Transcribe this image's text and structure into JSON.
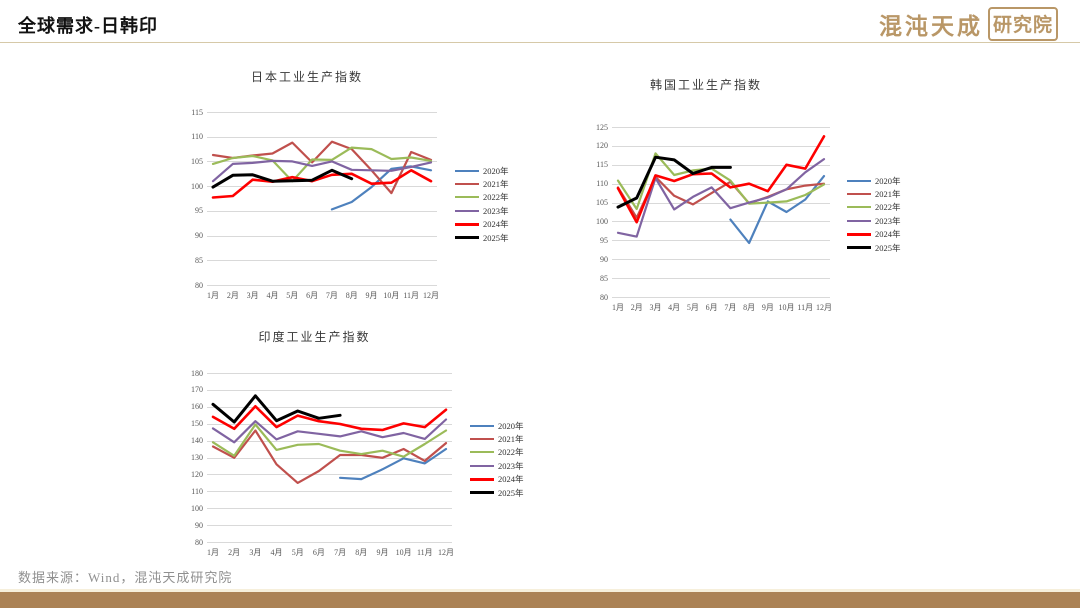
{
  "page": {
    "title": "全球需求-日韩印",
    "logo": {
      "brand": "混沌天成",
      "seal": "研究院"
    },
    "source": "数据来源：Wind，混沌天成研究院",
    "colors": {
      "accent_tan": "#AB8255",
      "logo_gold": "#B99767",
      "gridline": "#D9D9D9"
    }
  },
  "chart_data": [
    {
      "type": "line",
      "title": "日本工业生产指数",
      "x": [
        "1月",
        "2月",
        "3月",
        "4月",
        "5月",
        "6月",
        "7月",
        "8月",
        "9月",
        "10月",
        "11月",
        "12月"
      ],
      "ylim": [
        80,
        115
      ],
      "ystep": 5,
      "grid": true,
      "legend_position": "right",
      "series": [
        {
          "name": "2020年",
          "color": "#4E81BD",
          "values": [
            null,
            null,
            null,
            null,
            null,
            null,
            95.3,
            96.8,
            99.8,
            103.5,
            104,
            103.2
          ]
        },
        {
          "name": "2021年",
          "color": "#C0504D",
          "values": [
            106.3,
            105.7,
            106.2,
            106.6,
            108.8,
            104.8,
            109,
            107.5,
            103.2,
            98.6,
            106.9,
            105.3
          ]
        },
        {
          "name": "2022年",
          "color": "#9BBB59",
          "values": [
            104.5,
            105.7,
            106.1,
            105.2,
            101,
            105.4,
            105.3,
            107.8,
            107.5,
            105.5,
            105.8,
            105.1
          ]
        },
        {
          "name": "2023年",
          "color": "#8064A2",
          "values": [
            101,
            104.5,
            104.7,
            105.1,
            105,
            104.1,
            105,
            103.3,
            103.2,
            103.1,
            103.9,
            104.8
          ]
        },
        {
          "name": "2024年",
          "color": "#FE0000",
          "values": [
            97.7,
            98,
            101.3,
            100.9,
            101.8,
            101,
            102.3,
            102.5,
            100.5,
            100.7,
            103.2,
            101
          ]
        },
        {
          "name": "2025年",
          "color": "#000000",
          "values": [
            99.8,
            102.2,
            102.3,
            101,
            101.1,
            101.2,
            103.2,
            101.5,
            null,
            null,
            null,
            null
          ]
        }
      ]
    },
    {
      "type": "line",
      "title": "韩国工业生产指数",
      "x": [
        "1月",
        "2月",
        "3月",
        "4月",
        "5月",
        "6月",
        "7月",
        "8月",
        "9月",
        "10月",
        "11月",
        "12月"
      ],
      "ylim": [
        80,
        125
      ],
      "ystep": 5,
      "grid": true,
      "legend_position": "right",
      "series": [
        {
          "name": "2020年",
          "color": "#4E81BD",
          "values": [
            null,
            null,
            null,
            null,
            null,
            null,
            100.5,
            94.3,
            105.3,
            102.5,
            105.8,
            112
          ]
        },
        {
          "name": "2021年",
          "color": "#C0504D",
          "values": [
            109,
            101,
            111.8,
            106.8,
            104.5,
            107.5,
            110.5,
            104.8,
            106.5,
            108.5,
            109.5,
            110
          ]
        },
        {
          "name": "2022年",
          "color": "#9BBB59",
          "values": [
            110.8,
            103.3,
            118,
            112.3,
            113.5,
            114,
            110.8,
            104.7,
            105,
            105.3,
            107,
            109.8
          ]
        },
        {
          "name": "2023年",
          "color": "#8064A2",
          "values": [
            97,
            96,
            111.5,
            103.2,
            106.5,
            109,
            103.5,
            105,
            106.3,
            108.5,
            113,
            116.5
          ]
        },
        {
          "name": "2024年",
          "color": "#FE0000",
          "values": [
            108.8,
            99.8,
            112.2,
            110.7,
            112.5,
            112.7,
            109,
            110,
            108,
            115,
            114,
            122.5
          ]
        },
        {
          "name": "2025年",
          "color": "#000000",
          "values": [
            103.8,
            106.2,
            117,
            116.3,
            112.7,
            114.3,
            114.3,
            null,
            null,
            null,
            null,
            null
          ]
        }
      ]
    },
    {
      "type": "line",
      "title": "印度工业生产指数",
      "x": [
        "1月",
        "2月",
        "3月",
        "4月",
        "5月",
        "6月",
        "7月",
        "8月",
        "9月",
        "10月",
        "11月",
        "12月"
      ],
      "ylim": [
        80,
        180
      ],
      "ystep": 10,
      "grid": true,
      "legend_position": "right",
      "series": [
        {
          "name": "2020年",
          "color": "#4E81BD",
          "values": [
            null,
            null,
            null,
            null,
            null,
            null,
            118,
            117.2,
            123,
            129.5,
            126.5,
            135
          ]
        },
        {
          "name": "2021年",
          "color": "#C0504D",
          "values": [
            136.5,
            129.8,
            146,
            126,
            115,
            122,
            131.5,
            131.5,
            129.8,
            135,
            128,
            138.5
          ]
        },
        {
          "name": "2022年",
          "color": "#9BBB59",
          "values": [
            139,
            131,
            149.5,
            134.5,
            137.5,
            138,
            134,
            132,
            134,
            130.5,
            138,
            146
          ]
        },
        {
          "name": "2023年",
          "color": "#8064A2",
          "values": [
            147.2,
            139,
            151.5,
            140.7,
            145.5,
            144,
            142.5,
            145.5,
            142,
            144.5,
            141,
            152.5
          ]
        },
        {
          "name": "2024年",
          "color": "#FE0000",
          "values": [
            154,
            147,
            160.3,
            148,
            154.8,
            151.5,
            149.8,
            147,
            146.3,
            150.2,
            148,
            158.3
          ]
        },
        {
          "name": "2025年",
          "color": "#000000",
          "values": [
            161.5,
            151,
            166.5,
            151.8,
            157.5,
            153.2,
            155,
            null,
            null,
            null,
            null,
            null
          ]
        }
      ]
    }
  ]
}
